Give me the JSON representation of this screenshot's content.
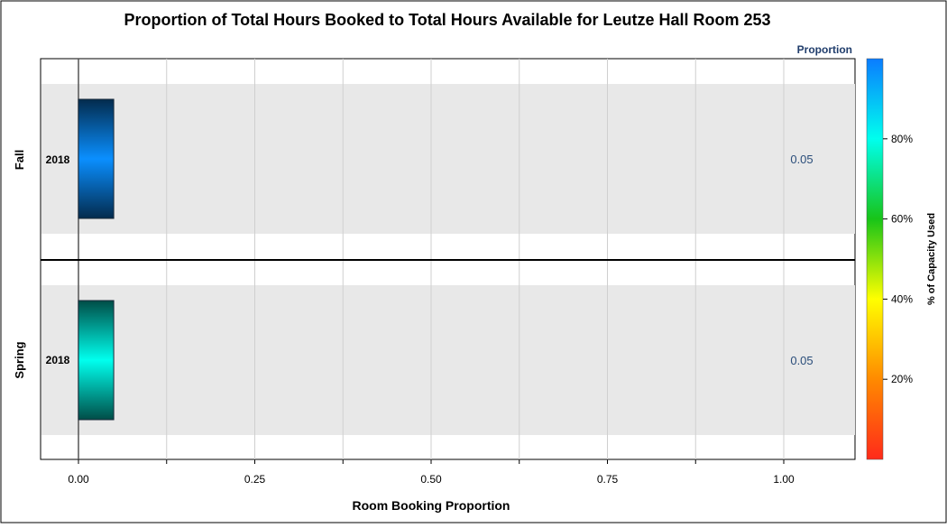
{
  "chart_data": {
    "type": "bar",
    "orientation": "horizontal",
    "title": "Proportion of Total Hours Booked to Total Hours Available for Leutze Hall Room 253",
    "xlabel": "Room Booking Proportion",
    "ylabel": "",
    "xlim": [
      0,
      1
    ],
    "x_ticks": [
      "0.00",
      "0.25",
      "0.50",
      "0.75",
      "1.00"
    ],
    "x_tick_values": [
      0,
      0.25,
      0.5,
      0.75,
      1.0
    ],
    "grid": true,
    "panels": [
      {
        "name": "Fall",
        "category": "2018",
        "value": 0.05,
        "value_label": "0.05",
        "capacity_pct": 96,
        "color": "#0a8fff"
      },
      {
        "name": "Spring",
        "category": "2018",
        "value": 0.05,
        "value_label": "0.05",
        "capacity_pct": 88,
        "color": "#00ffee"
      }
    ],
    "legend": {
      "title": "Proportion",
      "axis_label": "% of Capacity Used",
      "ticks": [
        "20%",
        "40%",
        "60%",
        "80%"
      ],
      "tick_values": [
        20,
        40,
        60,
        80
      ],
      "range": [
        0,
        100
      ],
      "placement": "right",
      "colors": [
        "#ff2a1a",
        "#ff8a00",
        "#ffff00",
        "#18c418",
        "#00ffee",
        "#0a7cff"
      ]
    }
  }
}
